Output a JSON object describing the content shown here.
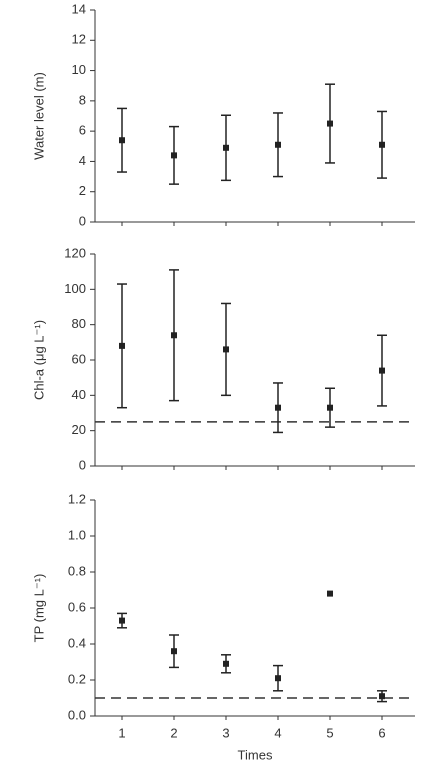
{
  "chart_data": [
    {
      "type": "errorbar",
      "ylabel": "Water level (m)",
      "values": [
        5.4,
        4.4,
        4.9,
        5.1,
        6.5,
        5.1
      ],
      "errors": [
        2.1,
        1.9,
        2.15,
        2.1,
        2.6,
        2.2
      ],
      "ylim": [
        0,
        14
      ],
      "yticks": [
        0,
        2,
        4,
        6,
        8,
        10,
        12,
        14
      ],
      "color": "#222222"
    },
    {
      "type": "errorbar",
      "ylabel": "Chl-a (μg L⁻¹)",
      "values": [
        68,
        74,
        66,
        33,
        33,
        54
      ],
      "errors": [
        35,
        37,
        26,
        14,
        11,
        20
      ],
      "ylim": [
        0,
        120
      ],
      "yticks": [
        0,
        20,
        40,
        60,
        80,
        100,
        120
      ],
      "reference_line": 25,
      "color": "#222222"
    },
    {
      "type": "errorbar",
      "ylabel": "TP (mg L⁻¹)",
      "xlabel": "Times",
      "categories": [
        "1",
        "2",
        "3",
        "4",
        "5",
        "6"
      ],
      "values": [
        0.53,
        0.36,
        0.29,
        0.21,
        0.68,
        0.11
      ],
      "errors": [
        0.04,
        0.09,
        0.05,
        0.07,
        0,
        0.03
      ],
      "ylim": [
        0,
        1.2
      ],
      "yticks": [
        {
          "value": 0,
          "label": "0.0"
        },
        {
          "value": 0.2,
          "label": "0.2"
        },
        {
          "value": 0.4,
          "label": "0.4"
        },
        {
          "value": 0.6,
          "label": "0.6"
        },
        {
          "value": 0.8,
          "label": "0.8"
        },
        {
          "value": 1.0,
          "label": "1.0"
        },
        {
          "value": 1.2,
          "label": "1.2"
        }
      ],
      "reference_line": 0.1,
      "color": "#222222"
    }
  ]
}
